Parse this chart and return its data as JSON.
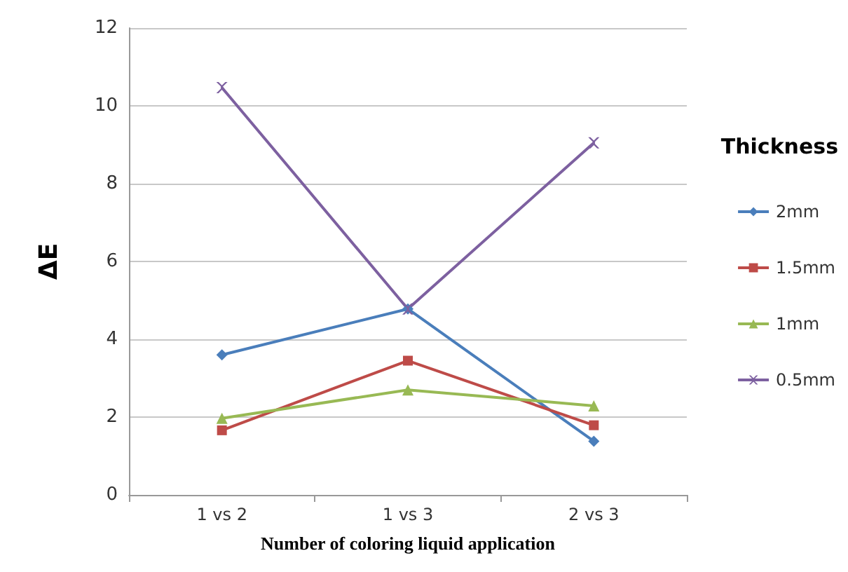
{
  "chart_data": {
    "type": "line",
    "xlabel": "Number of coloring liquid application",
    "ylabel": "ΔE",
    "legend_title": "Thickness",
    "legend": "right",
    "grid": "y",
    "categories": [
      "1 vs 2",
      "1 vs 3",
      "2 vs 3"
    ],
    "ylim": [
      0,
      12
    ],
    "yticks": [
      0,
      2,
      4,
      6,
      8,
      10,
      12
    ],
    "series": [
      {
        "name": "2mm",
        "color": "#4a7ebb",
        "marker": "diamond",
        "values": [
          3.6,
          4.78,
          1.38
        ]
      },
      {
        "name": "1.5mm",
        "color": "#be4b48",
        "marker": "square",
        "values": [
          1.66,
          3.45,
          1.79
        ]
      },
      {
        "name": "1mm",
        "color": "#98b954",
        "marker": "triangle",
        "values": [
          1.97,
          2.7,
          2.29
        ]
      },
      {
        "name": "0.5mm",
        "color": "#7d60a0",
        "marker": "cross",
        "values": [
          10.47,
          4.78,
          9.05
        ]
      }
    ]
  }
}
